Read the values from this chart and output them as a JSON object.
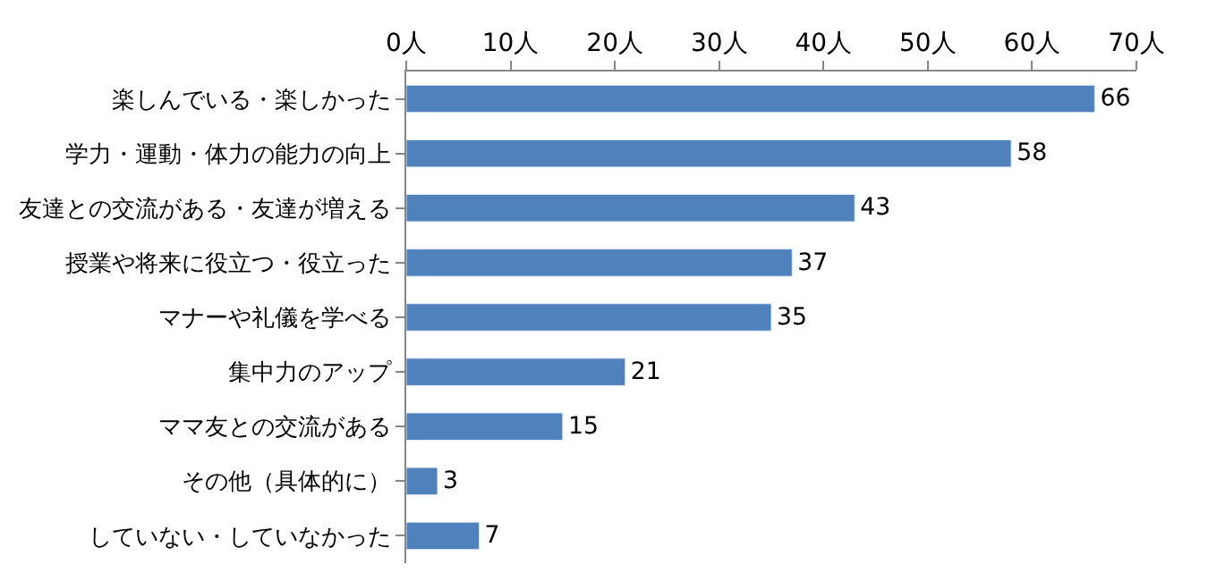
{
  "chart_data": {
    "type": "bar",
    "orientation": "horizontal",
    "categories": [
      "楽しんでいる・楽しかった",
      "学力・運動・体力の能力の向上",
      "友達との交流がある・友達が増える",
      "授業や将来に役立つ・役立った",
      "マナーや礼儀を学べる",
      "集中力のアップ",
      "ママ友との交流がある",
      "その他（具体的に）",
      "していない・していなかった"
    ],
    "values": [
      66,
      58,
      43,
      37,
      35,
      21,
      15,
      3,
      7
    ],
    "color": "#4f81bd",
    "xlim": [
      0,
      70
    ],
    "xticks": [
      {
        "value": 0,
        "label": "0人"
      },
      {
        "value": 10,
        "label": "10人"
      },
      {
        "value": 20,
        "label": "20人"
      },
      {
        "value": 30,
        "label": "30人"
      },
      {
        "value": 40,
        "label": "40人"
      },
      {
        "value": 50,
        "label": "50人"
      },
      {
        "value": 60,
        "label": "60人"
      },
      {
        "value": 70,
        "label": "70人"
      }
    ],
    "data_labels": true
  }
}
